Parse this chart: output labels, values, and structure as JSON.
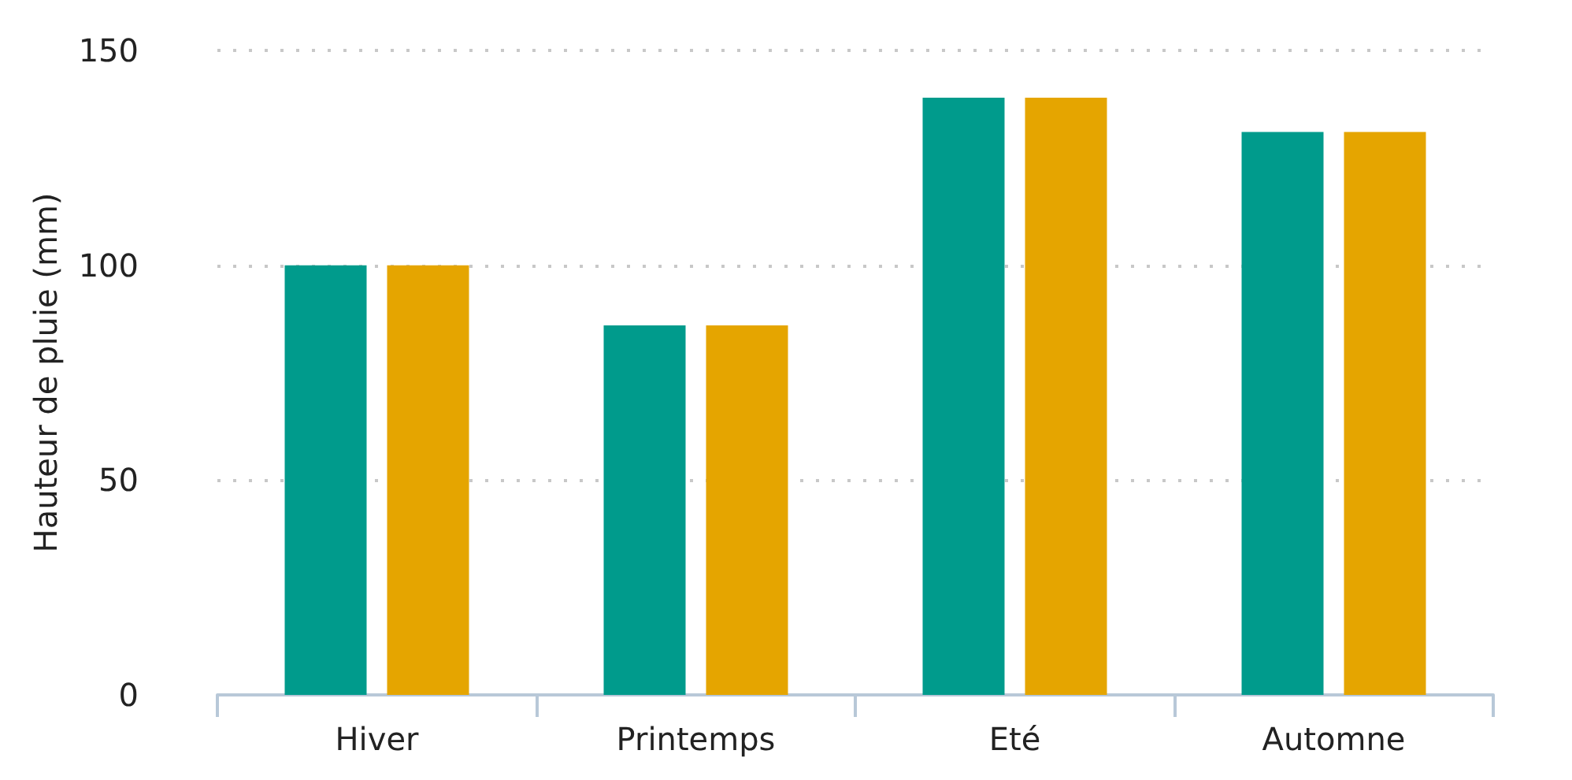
{
  "chart_data": {
    "type": "bar",
    "ylabel": "Hauteur de pluie (mm)",
    "categories": [
      "Hiver",
      "Printemps",
      "Eté",
      "Automne"
    ],
    "series": [
      {
        "color": "#009b8c",
        "values": [
          100,
          86,
          139,
          131
        ]
      },
      {
        "color": "#e5a500",
        "values": [
          100,
          86,
          139,
          131
        ]
      }
    ],
    "ylim": [
      0,
      150
    ],
    "yticks": [
      0,
      50,
      100,
      150
    ],
    "grid": "y"
  }
}
